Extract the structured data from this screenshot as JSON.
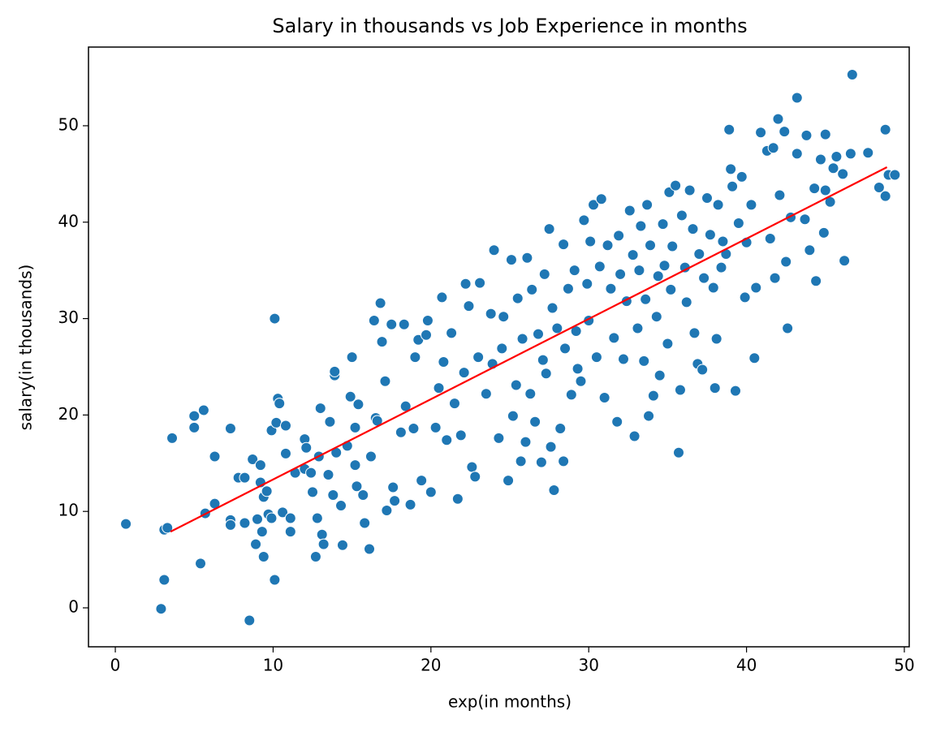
{
  "chart_data": {
    "type": "scatter",
    "title": "Salary in thousands vs Job Experience in months",
    "x_label": "exp(in months)",
    "y_label": "salary(in thousands)",
    "xlim": [
      -1.7,
      50.31
    ],
    "ylim": [
      -4.04,
      58.16
    ],
    "xticks": [
      0,
      10,
      20,
      30,
      40,
      50
    ],
    "yticks": [
      0,
      10,
      20,
      30,
      40,
      50
    ],
    "grid": false,
    "series": [
      {
        "type": "scatter",
        "color": "#1f77b4",
        "x": [
          0.67,
          2.9,
          3.1,
          3.1,
          3.3,
          3.6,
          5.0,
          5.0,
          5.6,
          5.4,
          5.7,
          6.3,
          6.3,
          7.3,
          7.3,
          7.3,
          7.8,
          8.2,
          8.2,
          8.5,
          8.7,
          8.9,
          9.0,
          9.2,
          9.3,
          9.4,
          9.2,
          9.4,
          9.6,
          9.7,
          9.9,
          10.1,
          10.1,
          9.9,
          10.2,
          10.3,
          10.4,
          10.6,
          10.8,
          10.8,
          11.1,
          11.1,
          11.4,
          12.0,
          12.0,
          12.1,
          12.4,
          12.5,
          12.7,
          12.8,
          12.9,
          13.0,
          13.1,
          13.2,
          13.5,
          13.6,
          13.8,
          13.9,
          13.9,
          14.0,
          14.3,
          14.4,
          14.7,
          14.9,
          15.0,
          15.2,
          15.2,
          15.3,
          15.4,
          15.7,
          15.8,
          16.1,
          16.2,
          16.4,
          16.5,
          16.6,
          16.8,
          16.9,
          17.1,
          17.2,
          17.5,
          17.6,
          17.7,
          18.1,
          18.3,
          18.4,
          18.7,
          18.9,
          19.0,
          19.2,
          19.4,
          19.7,
          19.8,
          20.0,
          20.3,
          20.5,
          20.7,
          20.8,
          21.0,
          21.3,
          21.5,
          21.7,
          21.9,
          22.1,
          22.2,
          22.4,
          22.6,
          22.8,
          23.0,
          23.1,
          23.5,
          23.8,
          23.9,
          24.0,
          24.3,
          24.5,
          24.6,
          24.9,
          25.1,
          25.2,
          25.4,
          25.5,
          25.7,
          25.8,
          26.0,
          26.1,
          26.3,
          26.4,
          26.6,
          26.8,
          27.0,
          27.1,
          27.2,
          27.3,
          27.5,
          27.6,
          27.7,
          27.8,
          28.0,
          28.2,
          28.4,
          28.4,
          28.5,
          28.7,
          28.9,
          29.1,
          29.2,
          29.3,
          29.5,
          29.7,
          29.9,
          30.0,
          30.1,
          30.3,
          30.5,
          30.7,
          30.8,
          31.0,
          31.2,
          31.4,
          31.6,
          31.8,
          31.9,
          32.0,
          32.2,
          32.4,
          32.6,
          32.8,
          32.9,
          33.1,
          33.2,
          33.3,
          33.5,
          33.6,
          33.7,
          33.8,
          33.9,
          34.1,
          34.3,
          34.4,
          34.5,
          34.7,
          34.8,
          35.0,
          35.1,
          35.2,
          35.3,
          35.5,
          35.7,
          35.8,
          35.9,
          36.1,
          36.2,
          36.4,
          36.6,
          36.7,
          36.9,
          37.0,
          37.2,
          37.3,
          37.5,
          37.7,
          37.9,
          38.0,
          38.1,
          38.2,
          38.4,
          38.5,
          38.7,
          38.9,
          39.0,
          39.1,
          39.3,
          39.5,
          39.7,
          39.9,
          40.0,
          40.3,
          40.5,
          40.6,
          40.9,
          41.3,
          41.5,
          41.7,
          41.8,
          42.0,
          42.1,
          42.4,
          42.5,
          42.6,
          42.8,
          43.2,
          43.2,
          43.7,
          43.8,
          44.0,
          44.3,
          44.4,
          44.7,
          44.9,
          45.0,
          45.0,
          45.3,
          45.5,
          45.7,
          46.1,
          46.2,
          46.6,
          46.7,
          47.7,
          48.4,
          48.8,
          48.8,
          49.0,
          49.4
        ],
        "values": [
          8.7,
          -0.1,
          2.9,
          8.1,
          8.3,
          17.6,
          19.9,
          18.7,
          20.5,
          4.6,
          9.8,
          10.8,
          15.7,
          18.6,
          9.1,
          8.6,
          13.5,
          13.5,
          8.8,
          -1.3,
          15.4,
          6.6,
          9.2,
          14.8,
          7.9,
          5.3,
          13.0,
          11.5,
          12.1,
          9.7,
          9.3,
          30.0,
          2.9,
          18.4,
          19.2,
          21.7,
          21.2,
          9.9,
          18.9,
          16.0,
          9.3,
          7.9,
          14.0,
          14.4,
          17.5,
          16.6,
          14.0,
          12.0,
          5.3,
          9.3,
          15.7,
          20.7,
          7.6,
          6.6,
          13.8,
          19.3,
          11.7,
          24.1,
          24.5,
          16.1,
          10.6,
          6.5,
          16.8,
          21.9,
          26.0,
          18.7,
          14.8,
          12.6,
          21.1,
          11.7,
          8.8,
          6.1,
          15.7,
          29.8,
          19.7,
          19.4,
          31.6,
          27.6,
          23.5,
          10.1,
          29.4,
          12.5,
          11.1,
          18.2,
          29.4,
          20.9,
          10.7,
          18.6,
          26.0,
          27.8,
          13.2,
          28.3,
          29.8,
          12.0,
          18.7,
          22.8,
          32.2,
          25.5,
          17.4,
          28.5,
          21.2,
          11.3,
          17.9,
          24.4,
          33.6,
          31.3,
          14.6,
          13.6,
          26.0,
          33.7,
          22.2,
          30.5,
          25.3,
          37.1,
          17.6,
          26.9,
          30.2,
          13.2,
          36.1,
          19.9,
          23.1,
          32.1,
          15.2,
          27.9,
          17.2,
          36.3,
          22.2,
          33.0,
          19.3,
          28.4,
          15.1,
          25.7,
          34.6,
          24.3,
          39.3,
          16.7,
          31.1,
          12.2,
          29.0,
          18.6,
          15.2,
          37.7,
          26.9,
          33.1,
          22.1,
          35.0,
          28.7,
          24.8,
          23.5,
          40.2,
          33.6,
          29.8,
          38.0,
          41.8,
          26.0,
          35.4,
          42.4,
          21.8,
          37.6,
          33.1,
          28.0,
          19.3,
          38.6,
          34.6,
          25.8,
          31.8,
          41.2,
          36.6,
          17.8,
          29.0,
          35.0,
          39.6,
          25.6,
          32.0,
          41.8,
          19.9,
          37.6,
          22.0,
          30.2,
          34.4,
          24.1,
          39.8,
          35.5,
          27.4,
          43.1,
          33.0,
          37.5,
          43.8,
          16.1,
          22.6,
          40.7,
          35.3,
          31.7,
          43.3,
          39.3,
          28.5,
          25.3,
          36.7,
          24.7,
          34.2,
          42.5,
          38.7,
          33.2,
          22.8,
          27.9,
          41.8,
          35.3,
          38.0,
          36.7,
          49.6,
          45.5,
          43.7,
          22.5,
          39.9,
          44.7,
          32.2,
          37.9,
          41.8,
          25.9,
          33.2,
          49.3,
          47.4,
          38.3,
          47.7,
          34.2,
          50.7,
          42.8,
          49.4,
          35.9,
          29.0,
          40.5,
          47.1,
          52.9,
          40.3,
          49.0,
          37.1,
          43.5,
          33.9,
          46.5,
          38.9,
          43.3,
          49.1,
          42.1,
          45.6,
          46.8,
          45.0,
          36.0,
          47.1,
          55.3,
          47.2,
          43.6,
          42.7,
          49.6,
          44.9,
          44.9
        ]
      },
      {
        "type": "line",
        "color": "#ff0000",
        "x": [
          3.5,
          48.9
        ],
        "values": [
          7.9,
          45.7
        ]
      }
    ]
  }
}
